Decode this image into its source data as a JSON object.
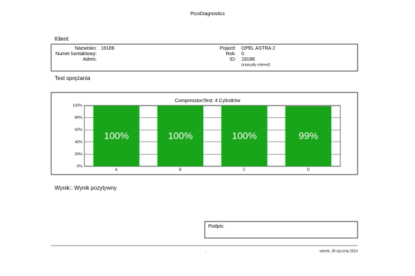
{
  "header": {
    "title": "PicoDiagnostics"
  },
  "client": {
    "section_title": "Klient",
    "left_fields": [
      {
        "label": "Nazwisko:",
        "value": "19186"
      },
      {
        "label": "Numer kontaktowy:"
      },
      {
        "label": "Adres:"
      }
    ],
    "right_fields": [
      {
        "label": "Pojazd:",
        "value": "OPEL ASTRA 2"
      },
      {
        "label": "Rok:",
        "value": "0"
      },
      {
        "label": "ID:",
        "value": "19186"
      }
    ],
    "id_note": "(manually entered)"
  },
  "test": {
    "section_title": "Test sprężania"
  },
  "chart_data": {
    "type": "bar",
    "title": "CompressionTest: 4 Cylindrów",
    "categories": [
      "A",
      "B",
      "C",
      "D"
    ],
    "values": [
      100,
      100,
      100,
      99
    ],
    "value_labels": [
      "100%",
      "100%",
      "100%",
      "99%"
    ],
    "color": "#19a519",
    "ylim": [
      0,
      100
    ],
    "yticks": [
      {
        "value": 0,
        "label": "0%"
      },
      {
        "value": 20,
        "label": "20%"
      },
      {
        "value": 40,
        "label": "40%"
      },
      {
        "value": 60,
        "label": "60%"
      },
      {
        "value": 80,
        "label": "80%"
      },
      {
        "value": 100,
        "label": "100%"
      }
    ],
    "grid": true
  },
  "result": {
    "text": "Wynik:: Wynik pozytywny"
  },
  "signature": {
    "label": "Podpis:"
  },
  "footer": {
    "center": "-",
    "date": "wtorek, 30 stycznia 2024"
  }
}
